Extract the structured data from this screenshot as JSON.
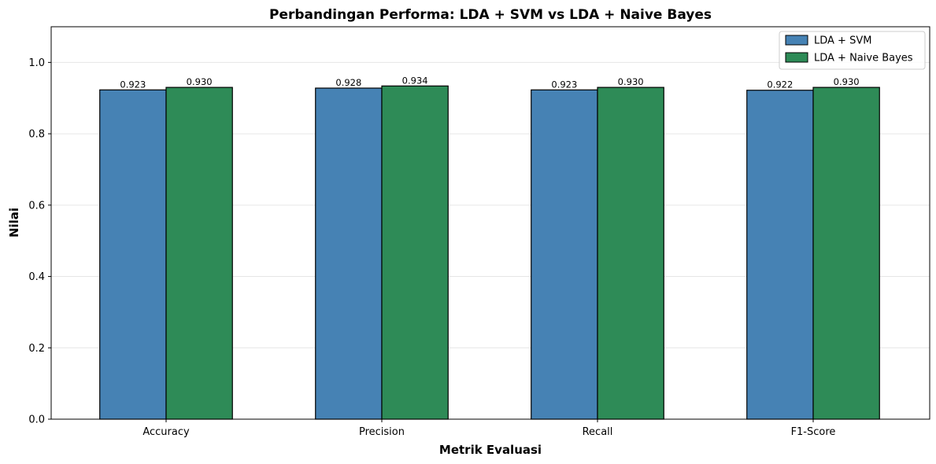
{
  "chart_data": {
    "type": "bar",
    "title": "Perbandingan Performa: LDA + SVM vs LDA + Naive Bayes",
    "xlabel": "Metrik Evaluasi",
    "ylabel": "Nilai",
    "categories": [
      "Accuracy",
      "Precision",
      "Recall",
      "F1-Score"
    ],
    "series": [
      {
        "name": "LDA + SVM",
        "color": "#4682b4",
        "values": [
          0.923,
          0.928,
          0.923,
          0.922
        ],
        "labels": [
          "0.923",
          "0.928",
          "0.923",
          "0.922"
        ]
      },
      {
        "name": "LDA + Naive Bayes",
        "color": "#2e8b57",
        "values": [
          0.93,
          0.934,
          0.93,
          0.93
        ],
        "labels": [
          "0.930",
          "0.934",
          "0.930",
          "0.930"
        ]
      }
    ],
    "ylim": [
      0,
      1.1
    ],
    "yticks": [
      "0.0",
      "0.2",
      "0.4",
      "0.6",
      "0.8",
      "1.0"
    ],
    "grid": "y",
    "legend": "top-right"
  }
}
